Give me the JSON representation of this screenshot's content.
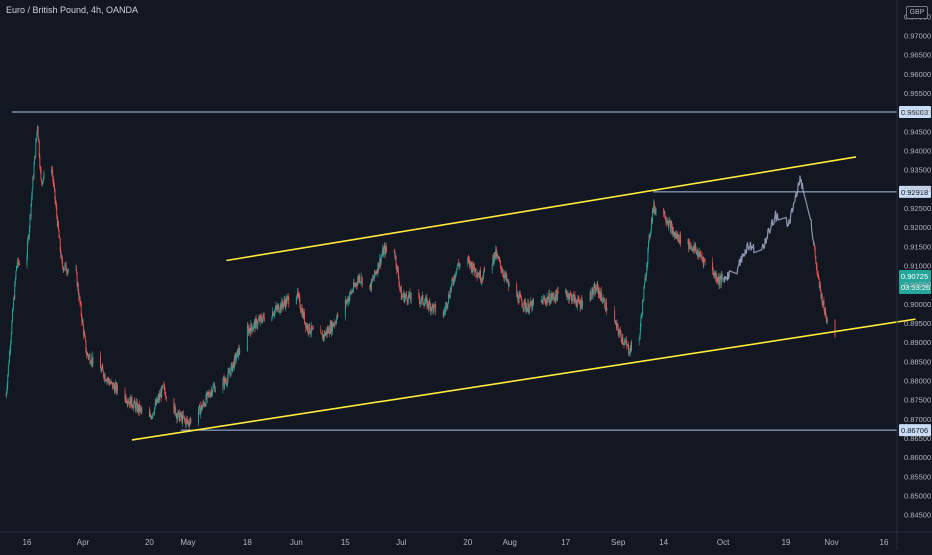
{
  "header": {
    "title": "Euro / British Pound, 4h, OANDA",
    "currency_button": "GBP"
  },
  "colors": {
    "background": "#131722",
    "up": "#26a69a",
    "down": "#ef5350",
    "grey_line": "#8b95ad",
    "trendline": "#ffeb3b",
    "hline": "#a9c4e9",
    "badge_bg": "#c8dcf5",
    "price_badge_bg": "#26a69a"
  },
  "chart_data": {
    "type": "candlestick",
    "title": "Euro / British Pound, 4h, OANDA",
    "y_axis_ticks": [
      "0.97500",
      "0.97000",
      "0.96500",
      "0.96000",
      "0.95500",
      "0.95000",
      "0.94500",
      "0.94000",
      "0.93500",
      "0.93000",
      "0.92500",
      "0.92000",
      "0.91500",
      "0.91000",
      "0.90500",
      "0.90000",
      "0.89500",
      "0.89000",
      "0.88500",
      "0.88000",
      "0.87500",
      "0.87000",
      "0.86500",
      "0.86000",
      "0.85500",
      "0.85000",
      "0.84500"
    ],
    "ylim": [
      0.841,
      0.9782
    ],
    "x_axis_ticks": [
      "16",
      "Apr",
      "20",
      "May",
      "18",
      "Jun",
      "15",
      "Jul",
      "20",
      "Aug",
      "17",
      "Sep",
      "14",
      "Oct",
      "19",
      "Nov",
      "16"
    ],
    "x_ticks_are_dates": [
      "2020-03-16",
      "2020-04-01",
      "2020-04-20",
      "2020-05-01",
      "2020-05-18",
      "2020-06-01",
      "2020-06-15",
      "2020-07-01",
      "2020-07-20",
      "2020-08-01",
      "2020-08-17",
      "2020-09-01",
      "2020-09-14",
      "2020-10-01",
      "2020-10-19",
      "2020-11-01",
      "2020-11-16"
    ],
    "price_anchors": [
      [
        "2020-03-10",
        0.876
      ],
      [
        "2020-03-13",
        0.91
      ],
      [
        "2020-03-16",
        0.913
      ],
      [
        "2020-03-19",
        0.947
      ],
      [
        "2020-03-20",
        0.932
      ],
      [
        "2020-03-23",
        0.936
      ],
      [
        "2020-03-26",
        0.91
      ],
      [
        "2020-03-30",
        0.908
      ],
      [
        "2020-04-02",
        0.887
      ],
      [
        "2020-04-06",
        0.883
      ],
      [
        "2020-04-09",
        0.879
      ],
      [
        "2020-04-14",
        0.875
      ],
      [
        "2020-04-20",
        0.87
      ],
      [
        "2020-04-24",
        0.878
      ],
      [
        "2020-04-28",
        0.871
      ],
      [
        "2020-05-01",
        0.869
      ],
      [
        "2020-05-05",
        0.873
      ],
      [
        "2020-05-08",
        0.878
      ],
      [
        "2020-05-12",
        0.88
      ],
      [
        "2020-05-18",
        0.893
      ],
      [
        "2020-05-22",
        0.896
      ],
      [
        "2020-05-27",
        0.899
      ],
      [
        "2020-06-01",
        0.903
      ],
      [
        "2020-06-04",
        0.894
      ],
      [
        "2020-06-08",
        0.891
      ],
      [
        "2020-06-11",
        0.894
      ],
      [
        "2020-06-15",
        0.9
      ],
      [
        "2020-06-19",
        0.907
      ],
      [
        "2020-06-22",
        0.904
      ],
      [
        "2020-06-26",
        0.914
      ],
      [
        "2020-06-29",
        0.914
      ],
      [
        "2020-07-01",
        0.902
      ],
      [
        "2020-07-07",
        0.901
      ],
      [
        "2020-07-13",
        0.897
      ],
      [
        "2020-07-17",
        0.91
      ],
      [
        "2020-07-20",
        0.911
      ],
      [
        "2020-07-24",
        0.907
      ],
      [
        "2020-07-28",
        0.913
      ],
      [
        "2020-08-01",
        0.904
      ],
      [
        "2020-08-06",
        0.899
      ],
      [
        "2020-08-11",
        0.901
      ],
      [
        "2020-08-17",
        0.903
      ],
      [
        "2020-08-21",
        0.9
      ],
      [
        "2020-08-26",
        0.904
      ],
      [
        "2020-09-01",
        0.893
      ],
      [
        "2020-09-04",
        0.888
      ],
      [
        "2020-09-07",
        0.891
      ],
      [
        "2020-09-10",
        0.918
      ],
      [
        "2020-09-11",
        0.925
      ],
      [
        "2020-09-14",
        0.924
      ],
      [
        "2020-09-17",
        0.918
      ],
      [
        "2020-09-22",
        0.915
      ],
      [
        "2020-09-25",
        0.912
      ],
      [
        "2020-09-30",
        0.906
      ],
      [
        "2020-10-05",
        0.909
      ],
      [
        "2020-10-08",
        0.915
      ],
      [
        "2020-10-12",
        0.914
      ],
      [
        "2020-10-16",
        0.923
      ],
      [
        "2020-10-20",
        0.921
      ],
      [
        "2020-10-23",
        0.933
      ],
      [
        "2020-10-26",
        0.923
      ],
      [
        "2020-10-28",
        0.907
      ],
      [
        "2020-10-30",
        0.898
      ],
      [
        "2020-11-02",
        0.892
      ]
    ],
    "candle_count_daily": true,
    "horizontal_lines": [
      {
        "label": "0.95003",
        "price": 0.95003
      },
      {
        "label": "0.92918",
        "price": 0.92918
      },
      {
        "label": "0.86706",
        "price": 0.86706
      }
    ],
    "trendlines": [
      {
        "from": [
          "2020-05-12",
          0.9113
        ],
        "to": [
          "2020-11-08",
          0.9383
        ]
      },
      {
        "from": [
          "2020-04-15",
          0.8645
        ],
        "to": [
          "2020-11-25",
          0.896
        ]
      }
    ],
    "last_price": {
      "value": "0.90725",
      "countdown": "03:53:26",
      "price": 0.90725
    }
  }
}
